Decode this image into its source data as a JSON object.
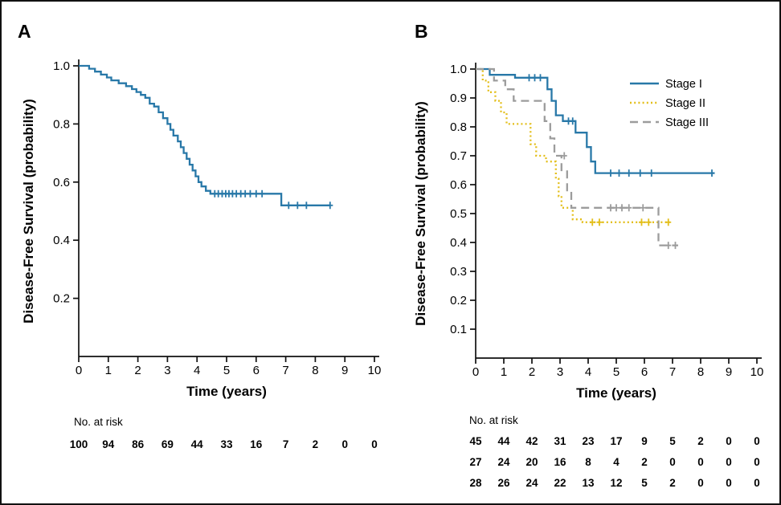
{
  "figure": {
    "panels": [
      {
        "label": "A",
        "ylabel": "Disease-Free Survival (probability)",
        "xlabel": "Time (years)",
        "at_risk_label": "No. at risk"
      },
      {
        "label": "B",
        "ylabel": "Disease-Free Survival (probability)",
        "xlabel": "Time (years)",
        "at_risk_label": "No. at risk"
      }
    ],
    "colors": {
      "stage_1": "#2878A8",
      "stage_2": "#E3BE19",
      "stage_3": "#9C9C9C",
      "axis": "#111111"
    }
  },
  "chart_data": [
    {
      "type": "line",
      "subtype": "kaplan_meier_step",
      "panel": "A",
      "xlabel": "Time (years)",
      "ylabel": "Disease-Free Survival (probability)",
      "xlim": [
        0,
        10
      ],
      "ylim": [
        0,
        1.0
      ],
      "xticks": [
        0,
        1,
        2,
        3,
        4,
        5,
        6,
        7,
        8,
        9,
        10
      ],
      "yticks": [
        1.0,
        0.8,
        0.6,
        0.4,
        0.2
      ],
      "ytick_labels": [
        "1.0",
        "0.8",
        "0.6",
        "0.4",
        "0.2"
      ],
      "grid": false,
      "legend": {
        "show": false
      },
      "series": [
        {
          "color": "#2878A8",
          "dash": "solid",
          "steps": [
            [
              0,
              1.0
            ],
            [
              0.35,
              1.0
            ],
            [
              0.35,
              0.99
            ],
            [
              0.55,
              0.99
            ],
            [
              0.55,
              0.98
            ],
            [
              0.75,
              0.98
            ],
            [
              0.75,
              0.97
            ],
            [
              0.95,
              0.97
            ],
            [
              0.95,
              0.96
            ],
            [
              1.1,
              0.96
            ],
            [
              1.1,
              0.95
            ],
            [
              1.35,
              0.95
            ],
            [
              1.35,
              0.94
            ],
            [
              1.6,
              0.94
            ],
            [
              1.6,
              0.93
            ],
            [
              1.8,
              0.93
            ],
            [
              1.8,
              0.92
            ],
            [
              1.95,
              0.92
            ],
            [
              1.95,
              0.91
            ],
            [
              2.1,
              0.91
            ],
            [
              2.1,
              0.9
            ],
            [
              2.25,
              0.9
            ],
            [
              2.25,
              0.89
            ],
            [
              2.4,
              0.89
            ],
            [
              2.4,
              0.87
            ],
            [
              2.55,
              0.87
            ],
            [
              2.55,
              0.86
            ],
            [
              2.7,
              0.86
            ],
            [
              2.7,
              0.84
            ],
            [
              2.85,
              0.84
            ],
            [
              2.85,
              0.82
            ],
            [
              3.0,
              0.82
            ],
            [
              3.0,
              0.8
            ],
            [
              3.1,
              0.8
            ],
            [
              3.1,
              0.78
            ],
            [
              3.2,
              0.78
            ],
            [
              3.2,
              0.76
            ],
            [
              3.35,
              0.76
            ],
            [
              3.35,
              0.74
            ],
            [
              3.45,
              0.74
            ],
            [
              3.45,
              0.72
            ],
            [
              3.55,
              0.72
            ],
            [
              3.55,
              0.7
            ],
            [
              3.65,
              0.7
            ],
            [
              3.65,
              0.68
            ],
            [
              3.75,
              0.68
            ],
            [
              3.75,
              0.66
            ],
            [
              3.85,
              0.66
            ],
            [
              3.85,
              0.64
            ],
            [
              3.95,
              0.64
            ],
            [
              3.95,
              0.62
            ],
            [
              4.05,
              0.62
            ],
            [
              4.05,
              0.6
            ],
            [
              4.15,
              0.6
            ],
            [
              4.15,
              0.585
            ],
            [
              4.3,
              0.585
            ],
            [
              4.3,
              0.57
            ],
            [
              4.45,
              0.57
            ],
            [
              4.45,
              0.56
            ],
            [
              6.85,
              0.56
            ],
            [
              6.85,
              0.52
            ],
            [
              8.5,
              0.52
            ]
          ],
          "censors": [
            [
              4.6,
              0.56
            ],
            [
              4.72,
              0.56
            ],
            [
              4.85,
              0.56
            ],
            [
              4.97,
              0.56
            ],
            [
              5.08,
              0.56
            ],
            [
              5.2,
              0.56
            ],
            [
              5.33,
              0.56
            ],
            [
              5.48,
              0.56
            ],
            [
              5.63,
              0.56
            ],
            [
              5.8,
              0.56
            ],
            [
              6.0,
              0.56
            ],
            [
              6.2,
              0.56
            ],
            [
              7.1,
              0.52
            ],
            [
              7.4,
              0.52
            ],
            [
              7.7,
              0.52
            ],
            [
              8.5,
              0.52
            ]
          ]
        }
      ],
      "at_risk": {
        "label": "No. at risk",
        "times": [
          0,
          1,
          2,
          3,
          4,
          5,
          6,
          7,
          8,
          9,
          10
        ],
        "rows": [
          [
            100,
            94,
            86,
            69,
            44,
            33,
            16,
            7,
            2,
            0,
            0
          ]
        ]
      }
    },
    {
      "type": "line",
      "subtype": "kaplan_meier_step",
      "panel": "B",
      "xlabel": "Time (years)",
      "ylabel": "Disease-Free Survival (probability)",
      "xlim": [
        0,
        10
      ],
      "ylim": [
        0,
        1.0
      ],
      "xticks": [
        0,
        1,
        2,
        3,
        4,
        5,
        6,
        7,
        8,
        9,
        10
      ],
      "yticks": [
        1.0,
        0.9,
        0.8,
        0.7,
        0.6,
        0.5,
        0.4,
        0.3,
        0.2,
        0.1
      ],
      "ytick_labels": [
        "1.0",
        "0.9",
        "0.8",
        "0.7",
        "0.6",
        "0.5",
        "0.4",
        "0.3",
        "0.2",
        "0.1"
      ],
      "grid": false,
      "legend": {
        "show": true,
        "position": "top-right"
      },
      "series": [
        {
          "name": "Stage I",
          "color": "#2878A8",
          "dash": "solid",
          "steps": [
            [
              0,
              1.0
            ],
            [
              0.5,
              1.0
            ],
            [
              0.5,
              0.98
            ],
            [
              1.4,
              0.98
            ],
            [
              1.4,
              0.97
            ],
            [
              2.55,
              0.97
            ],
            [
              2.55,
              0.93
            ],
            [
              2.7,
              0.93
            ],
            [
              2.7,
              0.89
            ],
            [
              2.85,
              0.89
            ],
            [
              2.85,
              0.84
            ],
            [
              3.1,
              0.84
            ],
            [
              3.1,
              0.82
            ],
            [
              3.55,
              0.82
            ],
            [
              3.55,
              0.78
            ],
            [
              3.95,
              0.78
            ],
            [
              3.95,
              0.73
            ],
            [
              4.1,
              0.73
            ],
            [
              4.1,
              0.68
            ],
            [
              4.25,
              0.68
            ],
            [
              4.25,
              0.64
            ],
            [
              8.5,
              0.64
            ]
          ],
          "censors": [
            [
              1.9,
              0.97
            ],
            [
              2.1,
              0.97
            ],
            [
              2.3,
              0.97
            ],
            [
              3.3,
              0.82
            ],
            [
              3.45,
              0.82
            ],
            [
              4.8,
              0.64
            ],
            [
              5.1,
              0.64
            ],
            [
              5.45,
              0.64
            ],
            [
              5.85,
              0.64
            ],
            [
              6.25,
              0.64
            ],
            [
              8.4,
              0.64
            ]
          ]
        },
        {
          "name": "Stage II",
          "color": "#E3BE19",
          "dash": "dotted",
          "steps": [
            [
              0,
              1.0
            ],
            [
              0.25,
              1.0
            ],
            [
              0.25,
              0.96
            ],
            [
              0.45,
              0.96
            ],
            [
              0.45,
              0.92
            ],
            [
              0.7,
              0.92
            ],
            [
              0.7,
              0.89
            ],
            [
              0.9,
              0.89
            ],
            [
              0.9,
              0.85
            ],
            [
              1.1,
              0.85
            ],
            [
              1.1,
              0.81
            ],
            [
              1.95,
              0.81
            ],
            [
              1.95,
              0.74
            ],
            [
              2.15,
              0.74
            ],
            [
              2.15,
              0.7
            ],
            [
              2.5,
              0.7
            ],
            [
              2.5,
              0.68
            ],
            [
              2.85,
              0.68
            ],
            [
              2.85,
              0.62
            ],
            [
              2.95,
              0.62
            ],
            [
              2.95,
              0.56
            ],
            [
              3.05,
              0.56
            ],
            [
              3.05,
              0.52
            ],
            [
              3.45,
              0.52
            ],
            [
              3.45,
              0.48
            ],
            [
              3.8,
              0.48
            ],
            [
              3.8,
              0.47
            ],
            [
              6.9,
              0.47
            ]
          ],
          "censors": [
            [
              4.15,
              0.47
            ],
            [
              4.4,
              0.47
            ],
            [
              5.9,
              0.47
            ],
            [
              6.15,
              0.47
            ],
            [
              6.85,
              0.47
            ]
          ]
        },
        {
          "name": "Stage III",
          "color": "#9C9C9C",
          "dash": "dashed",
          "steps": [
            [
              0,
              1.0
            ],
            [
              0.65,
              1.0
            ],
            [
              0.65,
              0.96
            ],
            [
              1.05,
              0.96
            ],
            [
              1.05,
              0.93
            ],
            [
              1.35,
              0.93
            ],
            [
              1.35,
              0.89
            ],
            [
              2.45,
              0.89
            ],
            [
              2.45,
              0.82
            ],
            [
              2.65,
              0.82
            ],
            [
              2.65,
              0.76
            ],
            [
              2.8,
              0.76
            ],
            [
              2.8,
              0.7
            ],
            [
              3.05,
              0.7
            ],
            [
              3.05,
              0.65
            ],
            [
              3.25,
              0.65
            ],
            [
              3.25,
              0.575
            ],
            [
              3.4,
              0.575
            ],
            [
              3.4,
              0.52
            ],
            [
              6.5,
              0.52
            ],
            [
              6.5,
              0.39
            ],
            [
              7.2,
              0.39
            ]
          ],
          "censors": [
            [
              3.15,
              0.7
            ],
            [
              4.8,
              0.52
            ],
            [
              5.0,
              0.52
            ],
            [
              5.2,
              0.52
            ],
            [
              5.45,
              0.52
            ],
            [
              5.95,
              0.52
            ],
            [
              6.85,
              0.39
            ],
            [
              7.1,
              0.39
            ]
          ]
        }
      ],
      "at_risk": {
        "label": "No. at risk",
        "times": [
          0,
          1,
          2,
          3,
          4,
          5,
          6,
          7,
          8,
          9,
          10
        ],
        "rows": [
          [
            45,
            44,
            42,
            31,
            23,
            17,
            9,
            5,
            2,
            0,
            0
          ],
          [
            27,
            24,
            20,
            16,
            8,
            4,
            2,
            0,
            0,
            0,
            0
          ],
          [
            28,
            26,
            24,
            22,
            13,
            12,
            5,
            2,
            0,
            0,
            0
          ]
        ]
      }
    }
  ]
}
